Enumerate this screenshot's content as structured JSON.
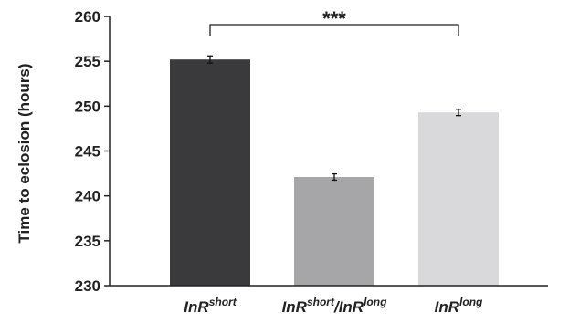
{
  "chart_data": {
    "type": "bar",
    "title": "",
    "xlabel": "",
    "ylabel": "Time to eclosion (hours)",
    "ylim": [
      230,
      260
    ],
    "yticks": [
      230,
      235,
      240,
      245,
      250,
      255,
      260
    ],
    "yticks_text": [
      "230",
      "235",
      "240",
      "245",
      "250",
      "255",
      "260"
    ],
    "grid": false,
    "categories": [
      {
        "base": "InR",
        "sup": "short"
      },
      {
        "base": "InR",
        "sup": "short",
        "sep": "/",
        "base2": "InR",
        "sup2": "long"
      },
      {
        "base": "InR",
        "sup": "long"
      }
    ],
    "values": [
      255.2,
      242.1,
      249.3
    ],
    "errors": [
      0.4,
      0.35,
      0.35
    ],
    "colors": [
      "#3a3a3c",
      "#a6a6a8",
      "#d9d9db"
    ],
    "annotation": {
      "text": "***",
      "from_category": 0,
      "to_category": 2
    }
  }
}
